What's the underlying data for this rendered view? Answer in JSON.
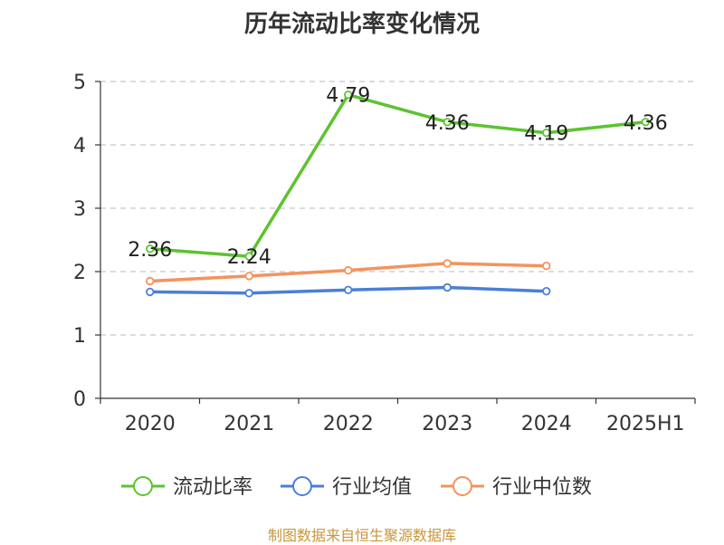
{
  "title": "历年流动比率变化情况",
  "footer": "制图数据来自恒生聚源数据库",
  "chart_data": {
    "type": "line",
    "title": "历年流动比率变化情况",
    "xlabel": "",
    "ylabel": "",
    "categories": [
      "2020",
      "2021",
      "2022",
      "2023",
      "2024",
      "2025H1"
    ],
    "ylim": [
      0,
      5
    ],
    "yticks": [
      0,
      1,
      2,
      3,
      4,
      5
    ],
    "grid": true,
    "legend_position": "bottom",
    "series": [
      {
        "name": "流动比率",
        "color": "#5cc330",
        "values": [
          2.36,
          2.24,
          4.79,
          4.36,
          4.19,
          4.36
        ],
        "labels": [
          "2.36",
          "2.24",
          "4.79",
          "4.36",
          "4.19",
          "4.36"
        ]
      },
      {
        "name": "行业均值",
        "color": "#4a7fd8",
        "values": [
          1.68,
          1.66,
          1.71,
          1.75,
          1.69,
          null
        ]
      },
      {
        "name": "行业中位数",
        "color": "#f4935c",
        "values": [
          1.85,
          1.93,
          2.02,
          2.13,
          2.09,
          null
        ]
      }
    ]
  }
}
